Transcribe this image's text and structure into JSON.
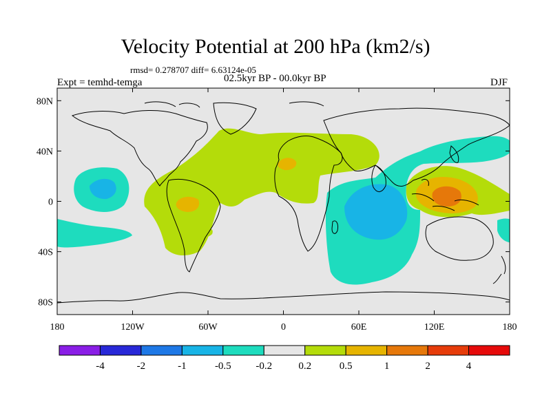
{
  "title": "Velocity Potential at 200 hPa (km2/s)",
  "stats_label": "rmsd= 0.278707 diff= 6.63124e-05",
  "experiment_label": "Expt = temhd-temga",
  "period_label": "02.5kyr BP - 00.0kyr BP",
  "season_label": "DJF",
  "map": {
    "projection": "cylindrical equidistant",
    "lon_range": [
      -180,
      180
    ],
    "lat_range": [
      -90,
      90
    ],
    "x_ticks": [
      "180",
      "120W",
      "60W",
      "0",
      "60E",
      "120E",
      "180"
    ],
    "y_ticks": [
      "80N",
      "40N",
      "0",
      "40S",
      "80S"
    ],
    "land_color": "#e6e6e6"
  },
  "colorbar": {
    "labels": [
      "-4",
      "-2",
      "-1",
      "-0.5",
      "-0.2",
      "0.2",
      "0.5",
      "1",
      "2",
      "4"
    ],
    "colors": [
      "#8a1ee6",
      "#2828d8",
      "#1e78e6",
      "#18b4e6",
      "#1edcbe",
      "#e6e6e6",
      "#b4dc0a",
      "#e6b400",
      "#e6780a",
      "#e63c0a",
      "#e60a0a"
    ]
  },
  "anomaly_colors": {
    "neg_02": "#1edcbe",
    "neg_05": "#18b4e6",
    "pos_02": "#b4dc0a",
    "pos_05": "#e6b400",
    "pos_1": "#e6780a"
  }
}
